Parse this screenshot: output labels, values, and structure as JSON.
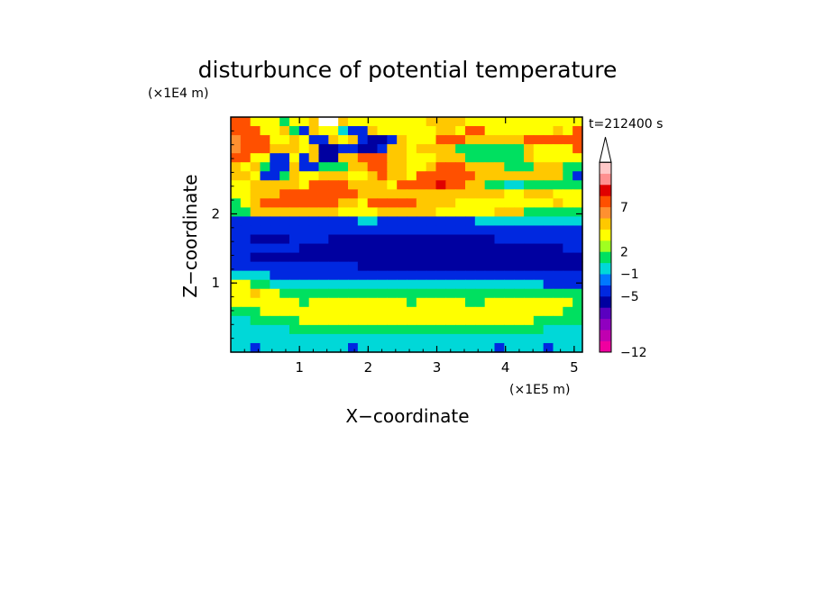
{
  "chart_data": {
    "type": "heatmap",
    "title": "disturbunce of potential temperature",
    "xlabel": "X−coordinate",
    "ylabel": "Z−coordinate",
    "x_unit": "(×1E5 m)",
    "y_unit": "(×1E4 m)",
    "time_label": "t=212400 s",
    "xlim": [
      0,
      5.12
    ],
    "ylim": [
      0,
      3.4
    ],
    "x_ticks": [
      "1",
      "2",
      "3",
      "4",
      "5"
    ],
    "y_ticks": [
      "1",
      "2"
    ],
    "colorbar": {
      "colors": [
        "#f000a0",
        "#c000b0",
        "#9000c0",
        "#5a00c0",
        "#0000a0",
        "#0028e0",
        "#0078ff",
        "#00d8d8",
        "#00e060",
        "#a0ff20",
        "#ffff00",
        "#ffc800",
        "#ff9030",
        "#ff5000",
        "#e00000",
        "#ff9090",
        "#ffc8c8",
        "#ffffff"
      ],
      "tick_labels": [
        "7",
        "2",
        "−1",
        "−5",
        "−12"
      ]
    },
    "field_rows_top_to_bottom": [
      "RRYYYGYYSDDSYYYYYYYYSSSSYYYYYYYYYYYY",
      "RRRYYSGBSYYCBBSYYYYYYSSYRRYYYYYYYSYR",
      "ORRRYYSYBBSYSBNNBSYYYRRRSSSSSSRRRRRR",
      "ORRRSSSYSNNBBNNBSSYSSSSGGGGGGGSYYYYR",
      "RRYYBBYBSNNSSRRRSSYYYSSSGGGGGGSYYYYY",
      "SYSGBBSBBGGGSSRRSSYYSRRRSSSSGGGSSSGG",
      "SSYBBGSYYSSSYYSRSSYRRRRRRSSSSSSSSSGB",
      "YYSSSSSYRRRRSSSSYRRRRMRRSSGGCCGGGGGG",
      "YYSSSRRRRRRRRSSSSSSSSSSSSSSSYYSSSYYY",
      "GYSRRRRRRRRSSYRRRRRSSSSYYYYYYYYYYSYY",
      "GGSSSSSSSSSYYYYSSSSSSYYYYYYSSSGGGGGG",
      "BBBBBBBBBBBBBCCBBBBBBBBBBCCCCCCCCCCC",
      "BBBBBBBBBBBBBBBBBBBBBBBBBBBBBBBBBBBB",
      "BBNNNNBBBBNNNNNNNNNNNNNNNNNBBBBBBBBB",
      "BBBBBBBNNNNNNNNNNNNNNNNNNNNNNNNNNNBB",
      "BBNNNNNNNNNNNNNNNNNNNNNNNNNNNNNNNNNN",
      "BBBBBBBBBBBBBNNNNNNNNNNNNNNNNNNNNNNN",
      "CCCCBBBBBBBBBBBBBBBBBBBBBBBBBBBBBBBB",
      "YYGGCCCCCCCCCCCCCCCCCCCCCCCCCCCCBBBB",
      "YYSYYGGGGGGGGGGGGGGGGGGGGGGGGGGGGGGG",
      "YYYYYYYGYYYYYYYYYYGYYYYYGGYYYYYYYYYG",
      "GGGYYYYYYYYYYYYYYYYYYYYYYYYYYYYYYYGG",
      "CCGGGGGYYYYYYYYYYYYYYYYYYYYYYYYGGGGG",
      "CCCCCCGGGGGGGGGGGGGGGGGGGGGGGGGGCCCC",
      "CCCCCCCCCCCCCCCCCCCCCCCCCCCCCCCCCCCC",
      "CCBCCCCCCCCCBCCCCCCCCCCCCCCBCCCCBCCC"
    ],
    "field_legend": {
      "M": "#e00000",
      "R": "#ff5000",
      "O": "#ff9030",
      "S": "#ffc800",
      "Y": "#ffff00",
      "G": "#00e060",
      "C": "#00d8d8",
      "B": "#0028e0",
      "N": "#0000a0"
    }
  }
}
